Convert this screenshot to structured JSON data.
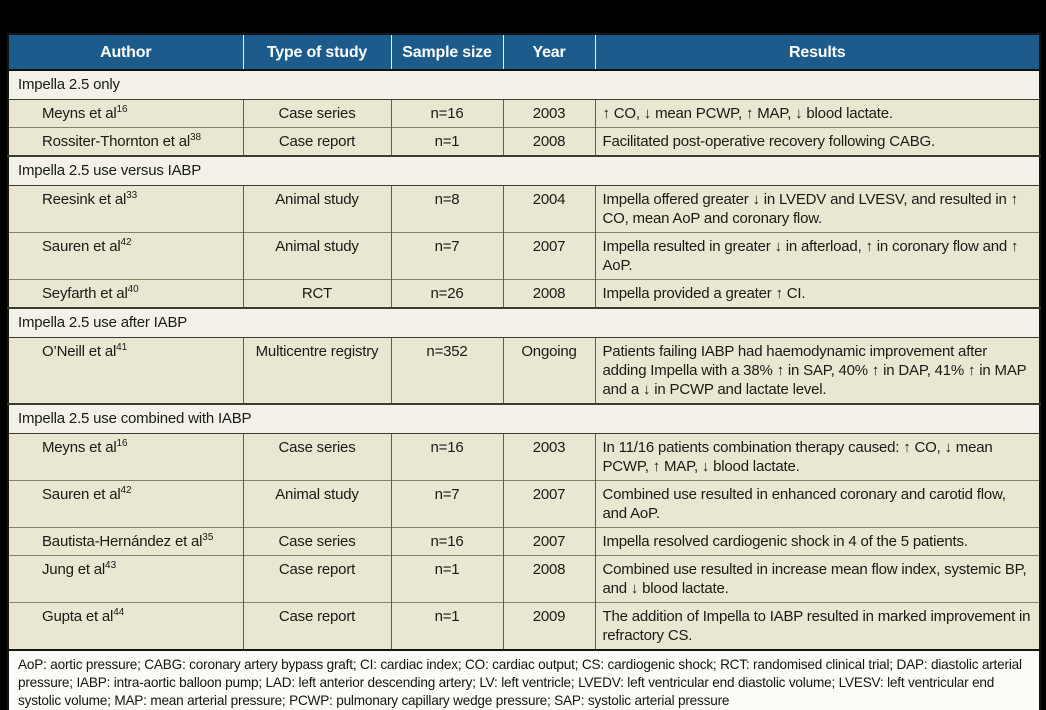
{
  "table": {
    "columns": [
      "Author",
      "Type of study",
      "Sample size",
      "Year",
      "Results"
    ],
    "sections": [
      {
        "title": "Impella 2.5 only",
        "rows": [
          {
            "author": "Meyns et al",
            "ref": "16",
            "type": "Case series",
            "sample": "n=16",
            "year": "2003",
            "results": "↑ CO, ↓ mean PCWP, ↑ MAP, ↓ blood lactate.",
            "lines": 1
          },
          {
            "author": "Rossiter-Thornton et al",
            "ref": "38",
            "type": "Case report",
            "sample": "n=1",
            "year": "2008",
            "results": "Facilitated post-operative recovery following CABG.",
            "lines": 1
          }
        ]
      },
      {
        "title": "Impella 2.5 use versus IABP",
        "rows": [
          {
            "author": "Reesink et al",
            "ref": "33",
            "type": "Animal study",
            "sample": "n=8",
            "year": "2004",
            "results": "Impella offered greater ↓ in LVEDV and LVESV, and resulted in ↑ CO, mean AoP and coronary flow.",
            "lines": 2
          },
          {
            "author": "Sauren et al",
            "ref": "42",
            "type": "Animal study",
            "sample": "n=7",
            "year": "2007",
            "results": "Impella resulted in greater ↓ in afterload, ↑ in coronary flow and ↑ AoP.",
            "lines": 2
          },
          {
            "author": "Seyfarth et al",
            "ref": "40",
            "type": "RCT",
            "sample": "n=26",
            "year": "2008",
            "results": "Impella provided a greater ↑ CI.",
            "lines": 1
          }
        ]
      },
      {
        "title": "Impella 2.5 use after IABP",
        "rows": [
          {
            "author": "O’Neill et al",
            "ref": "41",
            "type": "Multicentre registry",
            "sample": "n=352",
            "year": "Ongoing",
            "results": "Patients failing IABP had haemodynamic improvement after adding Impella with a 38% ↑ in SAP, 40% ↑ in DAP, 41% ↑ in MAP and a ↓ in PCWP and lactate level.",
            "lines": 3
          }
        ]
      },
      {
        "title": "Impella 2.5 use combined with IABP",
        "rows": [
          {
            "author": "Meyns et al",
            "ref": "16",
            "type": "Case series",
            "sample": "n=16",
            "year": "2003",
            "results": "In 11/16 patients combination therapy caused: ↑ CO, ↓ mean PCWP, ↑ MAP, ↓ blood lactate.",
            "lines": 2
          },
          {
            "author": "Sauren et al",
            "ref": "42",
            "type": "Animal study",
            "sample": "n=7",
            "year": "2007",
            "results": "Combined use resulted in enhanced coronary and carotid flow, and AoP.",
            "lines": 2
          },
          {
            "author": "Bautista-Hernández et al",
            "ref": "35",
            "type": "Case series",
            "sample": "n=16",
            "year": "2007",
            "results": "Impella resolved cardiogenic shock in 4 of the 5 patients.",
            "lines": 1
          },
          {
            "author": "Jung et al",
            "ref": "43",
            "type": "Case report",
            "sample": "n=1",
            "year": "2008",
            "results": "Combined use resulted in increase mean flow index, systemic BP, and ↓ blood lactate.",
            "lines": 2
          },
          {
            "author": "Gupta et al",
            "ref": "44",
            "type": "Case report",
            "sample": "n=1",
            "year": "2009",
            "results": "The addition of Impella to IABP resulted in marked improvement in refractory CS.",
            "lines": 2
          }
        ]
      }
    ],
    "footnote": "AoP: aortic pressure; CABG: coronary artery bypass graft; CI: cardiac index; CO: cardiac output; CS: cardiogenic shock; RCT: randomised clinical trial; DAP: diastolic arterial pressure; IABP: intra-aortic balloon pump; LAD: left anterior descending artery; LV: left ventricle; LVEDV: left ventricular end diastolic volume; LVESV: left ventricular end systolic volume; MAP: mean arterial pressure; PCWP: pulmonary capillary wedge pressure; SAP: systolic arterial pressure"
  },
  "colors": {
    "page_bg": "#000000",
    "header_bg": "#1d5b8c",
    "header_text": "#ffffff",
    "section_row_bg": "#f4f2e8",
    "data_row_bg": "#e9e6d2",
    "footnote_bg": "#fcfbf7",
    "border_dark": "#15150f",
    "border_light": "#83836f"
  }
}
